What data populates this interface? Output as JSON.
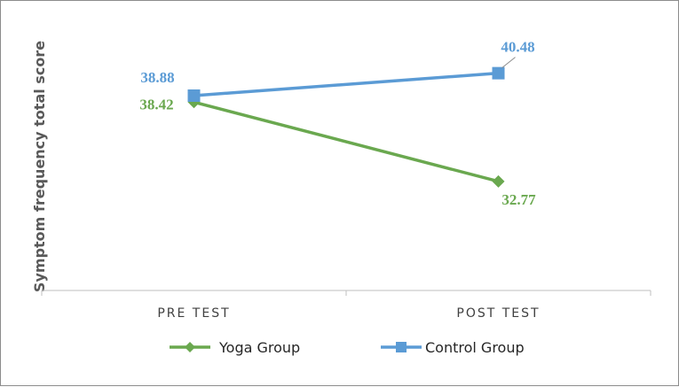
{
  "colors": {
    "yoga": "#6aa84f",
    "control": "#5b9bd5",
    "axis": "#bfbfbf",
    "leader": "#8c8c8c"
  },
  "chart_data": {
    "type": "line",
    "title": "",
    "xlabel": "",
    "ylabel": "Symptom frequency total score",
    "categories": [
      "PRE TEST",
      "POST TEST"
    ],
    "ylim": [
      25,
      45
    ],
    "grid": false,
    "legend": "bottom",
    "series": [
      {
        "name": "Yoga Group",
        "marker": "diamond",
        "color": "#6aa84f",
        "values": [
          38.42,
          32.77
        ],
        "labels": [
          "38.42",
          "32.77"
        ]
      },
      {
        "name": "Control Group",
        "marker": "square",
        "color": "#5b9bd5",
        "values": [
          38.88,
          40.48
        ],
        "labels": [
          "38.88",
          "40.48"
        ]
      }
    ]
  }
}
